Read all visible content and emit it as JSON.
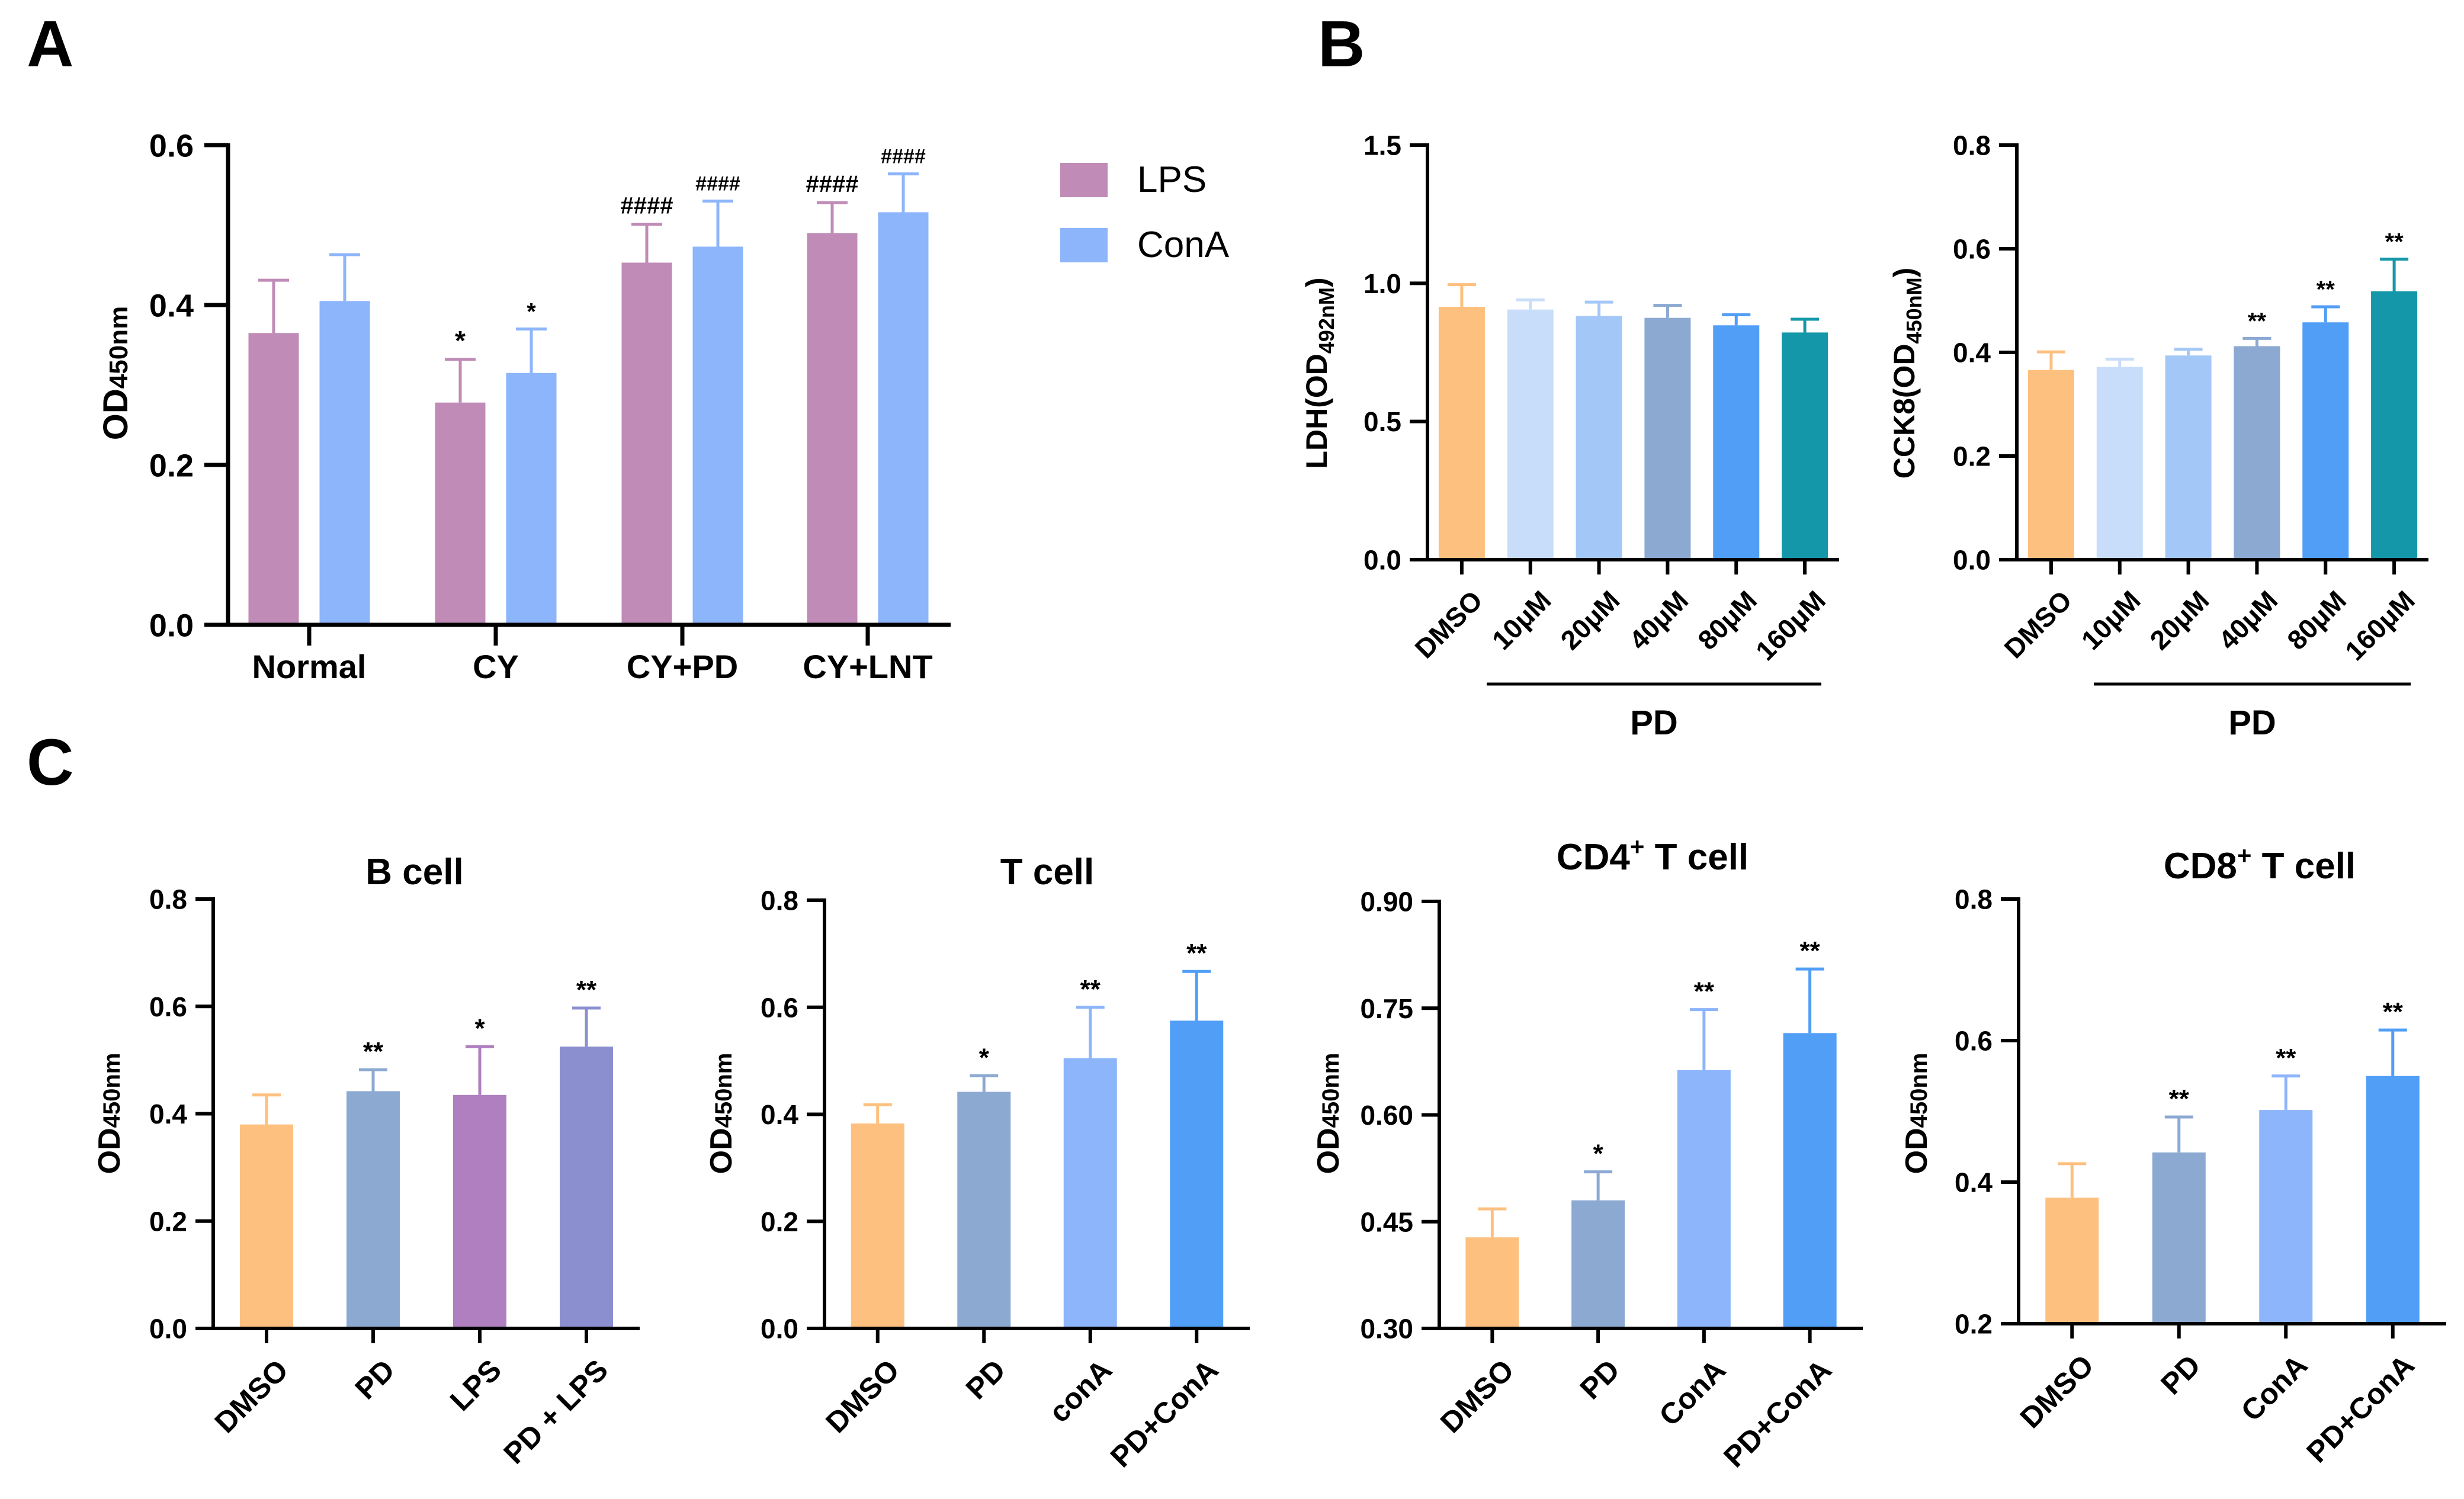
{
  "panel_labels": [
    "A",
    "B",
    "C"
  ],
  "chart_data": [
    {
      "id": "A",
      "type": "bar",
      "title": "",
      "ylabel_main": "OD",
      "ylabel_sub": "450nm",
      "ylim": [
        0,
        0.6
      ],
      "yticks": [
        "0.0",
        "0.2",
        "0.4",
        "0.6"
      ],
      "categories": [
        "Normal",
        "CY",
        "CY+PD",
        "CY+LNT"
      ],
      "series": [
        {
          "name": "LPS",
          "color": "#C08BB6",
          "values": [
            0.365,
            0.278,
            0.453,
            0.49
          ],
          "errors": [
            0.066,
            0.054,
            0.048,
            0.038
          ],
          "annotations": [
            "",
            "*",
            "####",
            "####"
          ]
        },
        {
          "name": "ConA",
          "color": "#8DB5FB",
          "values": [
            0.405,
            0.315,
            0.473,
            0.516
          ],
          "errors": [
            0.058,
            0.055,
            0.057,
            0.048
          ],
          "annotations": [
            "",
            "*",
            "####",
            "####"
          ]
        }
      ],
      "legend": {
        "placement": "right",
        "entries": [
          "LPS",
          "ConA"
        ]
      }
    },
    {
      "id": "B1",
      "type": "bar",
      "ylabel_main": "LDH",
      "ylabel_paren_open": "(",
      "ylabel_inner": "OD",
      "ylabel_sub": "492nM",
      "ylabel_paren_close": ")",
      "ylim": [
        0,
        1.5
      ],
      "yticks": [
        "0.0",
        "0.5",
        "1.0",
        "1.5"
      ],
      "categories": [
        "DMSO",
        "10μM",
        "20μM",
        "40μM",
        "80μM",
        "160μM"
      ],
      "values": [
        0.915,
        0.905,
        0.882,
        0.875,
        0.848,
        0.822
      ],
      "errors": [
        0.08,
        0.035,
        0.05,
        0.045,
        0.038,
        0.048
      ],
      "colors": [
        "#FDC07F",
        "#C8DDF9",
        "#A3C8F7",
        "#8CA9D2",
        "#519EF7",
        "#1497A9"
      ],
      "annotations": [
        "",
        "",
        "",
        "",
        "",
        ""
      ],
      "group_label": "PD"
    },
    {
      "id": "B2",
      "type": "bar",
      "ylabel_main": "CCK8",
      "ylabel_paren_open": "(",
      "ylabel_inner": "OD",
      "ylabel_sub": "450nM",
      "ylabel_paren_close": ")",
      "ylim": [
        0,
        0.8
      ],
      "yticks": [
        "0.0",
        "0.2",
        "0.4",
        "0.6",
        "0.8"
      ],
      "categories": [
        "DMSO",
        "10μM",
        "20μM",
        "40μM",
        "80μM",
        "160μM"
      ],
      "values": [
        0.366,
        0.372,
        0.394,
        0.412,
        0.458,
        0.518
      ],
      "errors": [
        0.035,
        0.015,
        0.012,
        0.015,
        0.03,
        0.062
      ],
      "colors": [
        "#FDC07F",
        "#C8DDF9",
        "#A3C8F7",
        "#8CA9D2",
        "#519EF7",
        "#1497A9"
      ],
      "annotations": [
        "",
        "",
        "",
        "**",
        "**",
        "**"
      ],
      "group_label": "PD"
    },
    {
      "id": "C1",
      "type": "bar",
      "title": "B cell",
      "ylabel_main": "OD",
      "ylabel_sub": "450nm",
      "ylim": [
        0,
        0.8
      ],
      "yticks": [
        "0.0",
        "0.2",
        "0.4",
        "0.6",
        "0.8"
      ],
      "categories": [
        "DMSO",
        "PD",
        "LPS",
        "PD + LPS"
      ],
      "values": [
        0.38,
        0.442,
        0.435,
        0.525
      ],
      "errors": [
        0.055,
        0.04,
        0.09,
        0.072
      ],
      "colors": [
        "#FDC07F",
        "#8CA9D2",
        "#AF7FBF",
        "#8B8FD0"
      ],
      "annotations": [
        "",
        "**",
        "*",
        "**"
      ]
    },
    {
      "id": "C2",
      "type": "bar",
      "title": "T cell",
      "ylabel_main": "OD",
      "ylabel_sub": "450nm",
      "ylim": [
        0,
        0.8
      ],
      "yticks": [
        "0.0",
        "0.2",
        "0.4",
        "0.6",
        "0.8"
      ],
      "categories": [
        "DMSO",
        "PD",
        "conA",
        "PD+ConA"
      ],
      "values": [
        0.383,
        0.442,
        0.505,
        0.575
      ],
      "errors": [
        0.035,
        0.03,
        0.095,
        0.092
      ],
      "colors": [
        "#FDC07F",
        "#8CA9D2",
        "#8DB5FB",
        "#519EF7"
      ],
      "annotations": [
        "",
        "*",
        "**",
        "**"
      ]
    },
    {
      "id": "C3",
      "type": "bar",
      "title_pre": "CD4",
      "title_sup": "+",
      "title_post": " T cell",
      "ylabel_main": "OD",
      "ylabel_sub": "450nm",
      "ylim": [
        0.3,
        0.9
      ],
      "yticks": [
        "0.30",
        "0.45",
        "0.60",
        "0.75",
        "0.90"
      ],
      "categories": [
        "DMSO",
        "PD",
        "ConA",
        "PD+ConA"
      ],
      "values": [
        0.428,
        0.48,
        0.663,
        0.715
      ],
      "errors": [
        0.04,
        0.04,
        0.085,
        0.09
      ],
      "colors": [
        "#FDC07F",
        "#8CA9D2",
        "#8DB5FB",
        "#519EF7"
      ],
      "annotations": [
        "",
        "*",
        "**",
        "**"
      ]
    },
    {
      "id": "C4",
      "type": "bar",
      "title_pre": "CD8",
      "title_sup": "+",
      "title_post": " T cell",
      "ylabel_main": "OD",
      "ylabel_sub": "450nm",
      "ylim": [
        0.2,
        0.8
      ],
      "yticks": [
        "0.2",
        "0.4",
        "0.6",
        "0.8"
      ],
      "categories": [
        "DMSO",
        "PD",
        "ConA",
        "PD+ConA"
      ],
      "values": [
        0.378,
        0.442,
        0.502,
        0.55
      ],
      "errors": [
        0.048,
        0.05,
        0.048,
        0.065
      ],
      "colors": [
        "#FDC07F",
        "#8CA9D2",
        "#8DB5FB",
        "#519EF7"
      ],
      "annotations": [
        "",
        "**",
        "**",
        "**"
      ]
    }
  ]
}
